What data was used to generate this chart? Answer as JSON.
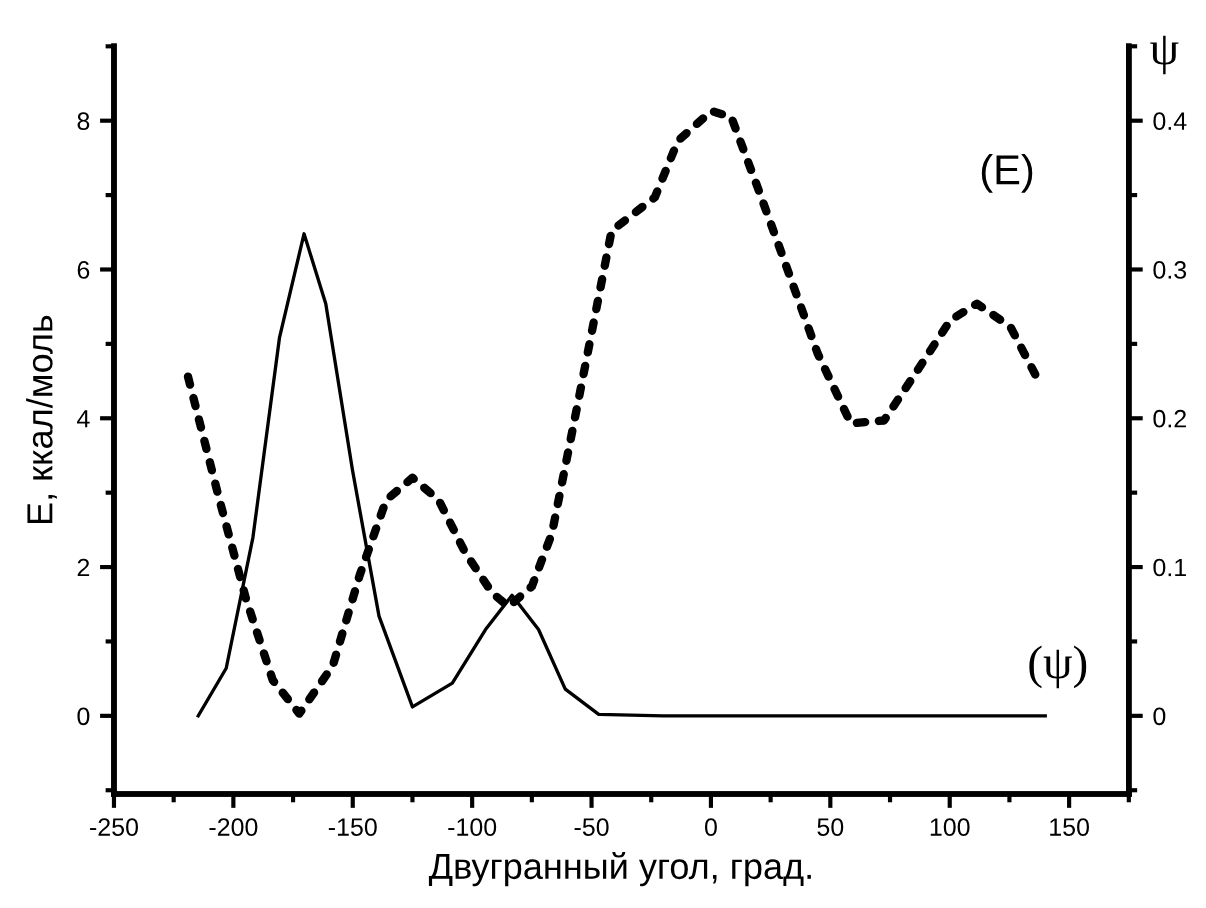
{
  "chart_data": {
    "type": "line",
    "xlabel": "Двугранный угол, град.",
    "ylabel": "E, ккал/моль",
    "y2label": "ψ",
    "xlim": [
      -250,
      175
    ],
    "xticks": [
      -250,
      -200,
      -150,
      -100,
      -50,
      0,
      50,
      100,
      150
    ],
    "ylim": [
      -1.05,
      9
    ],
    "yticks": [
      0,
      2,
      4,
      6,
      8
    ],
    "y2lim": [
      -0.0525,
      0.45
    ],
    "y2ticks": [
      0,
      0.1,
      0.2,
      0.3,
      0.4
    ],
    "grid": false,
    "legend": false,
    "series": [
      {
        "name": "(E)",
        "color": "#000000",
        "line_style": "dotted",
        "x": [
          -219,
          -205.8,
          -194.6,
          -183.5,
          -172.4,
          -158.4,
          -147,
          -136,
          -125,
          -114,
          -103,
          -91.6,
          -84.7,
          -75,
          -66.6,
          -55.5,
          -41.6,
          -23.5,
          -13.8,
          0.2,
          8.5,
          19.6,
          30.7,
          44.7,
          58.6,
          72.5,
          86.4,
          100.3,
          111.4,
          125.4,
          137.9
        ],
        "values": [
          4.56,
          2.9,
          1.56,
          0.48,
          0.03,
          0.67,
          1.9,
          2.9,
          3.2,
          2.9,
          2.2,
          1.65,
          1.47,
          1.74,
          2.45,
          4.24,
          6.52,
          6.97,
          7.73,
          8.13,
          8.05,
          7.1,
          6.12,
          4.87,
          3.93,
          3.97,
          4.64,
          5.32,
          5.54,
          5.23,
          4.46
        ]
      },
      {
        "name": "(ψ)",
        "color": "#000000",
        "line_style": "solid",
        "axis": "y2",
        "x": [
          -214.7,
          -203,
          -191.8,
          -180.7,
          -170.4,
          -161.3,
          -150.1,
          -139,
          -125,
          -108.3,
          -94.4,
          -83.3,
          -72.2,
          -61,
          -47,
          -20,
          0,
          50,
          100,
          140
        ],
        "values": [
          0,
          0.032,
          0.12,
          0.254,
          0.324,
          0.277,
          0.165,
          0.067,
          0.006,
          0.022,
          0.058,
          0.081,
          0.058,
          0.018,
          0.001,
          0,
          0,
          0,
          0,
          0
        ]
      }
    ]
  }
}
